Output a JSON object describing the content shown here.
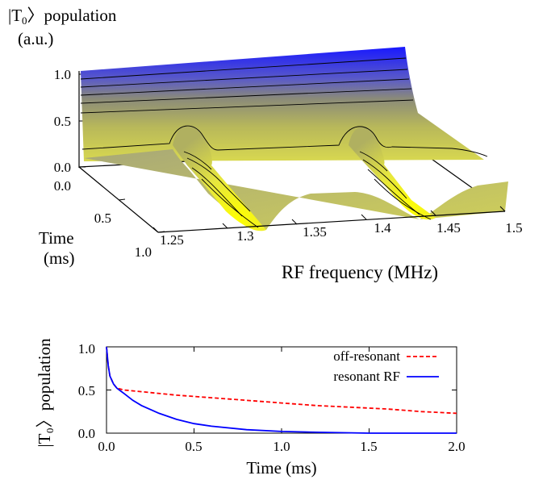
{
  "chart_data": [
    {
      "type": "surface3d",
      "zlabel_line1": "|T",
      "zlabel_sub": "0",
      "zlabel_ket": "〉population",
      "zlabel_line2": "(a.u.)",
      "xlabel": "RF frequency (MHz)",
      "ylabel_line1": "Time",
      "ylabel_line2": "(ms)",
      "x_ticks": [
        "1.25",
        "1.3",
        "1.35",
        "1.4",
        "1.45",
        "1.5"
      ],
      "x_range": [
        1.25,
        1.5
      ],
      "y_ticks": [
        "0.0",
        "0.5",
        "1.0"
      ],
      "y_range": [
        0.0,
        1.0
      ],
      "z_ticks": [
        "0.0",
        "0.5",
        "1.0"
      ],
      "z_range": [
        0.0,
        1.0
      ],
      "resonances_MHz": [
        1.32,
        1.44
      ],
      "colors": {
        "high": "#1a1aff",
        "mid": "#9a9a6a",
        "low": "#f0f000"
      }
    },
    {
      "type": "line",
      "ylabel": "|T₀〉population",
      "xlabel": "Time (ms)",
      "xlim": [
        0.0,
        2.0
      ],
      "ylim": [
        0.0,
        1.0
      ],
      "x_ticks": [
        "0.0",
        "0.5",
        "1.0",
        "1.5",
        "2.0"
      ],
      "y_ticks": [
        "0.0",
        "0.5",
        "1.0"
      ],
      "legend_position": "top-right",
      "series": [
        {
          "name": "off-resonant",
          "color": "#ff0000",
          "dash": "dashed",
          "x": [
            0.0,
            0.01,
            0.02,
            0.04,
            0.06,
            0.08,
            0.1,
            0.2,
            0.4,
            0.6,
            0.8,
            1.0,
            1.2,
            1.4,
            1.6,
            1.8,
            2.0
          ],
          "y": [
            1.0,
            0.78,
            0.66,
            0.57,
            0.52,
            0.51,
            0.5,
            0.48,
            0.44,
            0.41,
            0.38,
            0.35,
            0.32,
            0.3,
            0.28,
            0.25,
            0.23
          ]
        },
        {
          "name": "resonant RF",
          "color": "#0000ff",
          "dash": "solid",
          "x": [
            0.0,
            0.01,
            0.02,
            0.04,
            0.06,
            0.08,
            0.1,
            0.15,
            0.2,
            0.3,
            0.4,
            0.5,
            0.6,
            0.8,
            1.0,
            1.2,
            1.5,
            2.0
          ],
          "y": [
            1.0,
            0.78,
            0.66,
            0.57,
            0.52,
            0.49,
            0.46,
            0.38,
            0.32,
            0.23,
            0.16,
            0.11,
            0.08,
            0.04,
            0.02,
            0.01,
            0.0,
            0.0
          ]
        }
      ]
    }
  ]
}
